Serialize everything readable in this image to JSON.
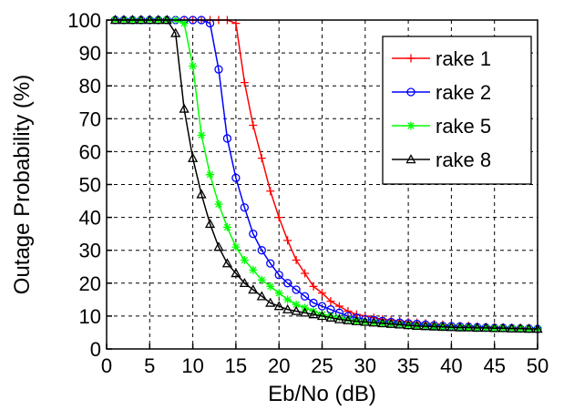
{
  "chart_data": {
    "type": "line",
    "xlabel": "Eb/No (dB)",
    "ylabel": "Outage Probability (%)",
    "xlim": [
      0,
      50
    ],
    "ylim": [
      0,
      100
    ],
    "xticks": [
      0,
      5,
      10,
      15,
      20,
      25,
      30,
      35,
      40,
      45,
      50
    ],
    "yticks": [
      0,
      10,
      20,
      30,
      40,
      50,
      60,
      70,
      80,
      90,
      100
    ],
    "grid": true,
    "legend_position": "top-right",
    "series": [
      {
        "name": "rake 1",
        "color": "#ff0000",
        "marker": "plus",
        "x": [
          1,
          2,
          3,
          4,
          5,
          6,
          7,
          8,
          9,
          10,
          11,
          12,
          13,
          14,
          15,
          16,
          17,
          18,
          19,
          20,
          21,
          22,
          23,
          24,
          25,
          26,
          27,
          28,
          29,
          30,
          31,
          32,
          33,
          34,
          35,
          36,
          37,
          38,
          39,
          40,
          41,
          42,
          43,
          44,
          45,
          46,
          47,
          48,
          49,
          50
        ],
        "y": [
          100,
          100,
          100,
          100,
          100,
          100,
          100,
          100,
          100,
          100,
          100,
          100,
          100,
          100,
          99,
          81,
          68,
          58,
          48,
          40,
          33,
          27,
          23,
          19,
          17,
          14.5,
          13,
          11.5,
          10.5,
          10,
          9.5,
          9,
          8.8,
          8.5,
          8.2,
          8,
          7.8,
          7.6,
          7.4,
          7.2,
          7,
          7,
          6.8,
          6.7,
          6.6,
          6.5,
          6.4,
          6.3,
          6.2,
          6.1
        ]
      },
      {
        "name": "rake 2",
        "color": "#0000ff",
        "marker": "circle",
        "x": [
          1,
          2,
          3,
          4,
          5,
          6,
          7,
          8,
          9,
          10,
          11,
          12,
          13,
          14,
          15,
          16,
          17,
          18,
          19,
          20,
          21,
          22,
          23,
          24,
          25,
          26,
          27,
          28,
          29,
          30,
          31,
          32,
          33,
          34,
          35,
          36,
          37,
          38,
          39,
          40,
          41,
          42,
          43,
          44,
          45,
          46,
          47,
          48,
          49,
          50
        ],
        "y": [
          100,
          100,
          100,
          100,
          100,
          100,
          100,
          100,
          100,
          100,
          100,
          99,
          85,
          64,
          52,
          43,
          35,
          30,
          26,
          22.5,
          20,
          18,
          16,
          14,
          13,
          12,
          11,
          10,
          9.5,
          9,
          8.8,
          8.5,
          8.2,
          8,
          7.8,
          7.6,
          7.4,
          7.2,
          7,
          6.9,
          6.8,
          6.7,
          6.6,
          6.5,
          6.4,
          6.4,
          6.3,
          6.2,
          6.2,
          6.1
        ]
      },
      {
        "name": "rake 5",
        "color": "#00ff00",
        "marker": "star",
        "x": [
          1,
          2,
          3,
          4,
          5,
          6,
          7,
          8,
          9,
          10,
          11,
          12,
          13,
          14,
          15,
          16,
          17,
          18,
          19,
          20,
          21,
          22,
          23,
          24,
          25,
          26,
          27,
          28,
          29,
          30,
          31,
          32,
          33,
          34,
          35,
          36,
          37,
          38,
          39,
          40,
          41,
          42,
          43,
          44,
          45,
          46,
          47,
          48,
          49,
          50
        ],
        "y": [
          100,
          100,
          100,
          100,
          100,
          100,
          100,
          100,
          99,
          86,
          65,
          53,
          44,
          37,
          31,
          27,
          24,
          21,
          19,
          17,
          15,
          13.5,
          12.5,
          11.5,
          10.5,
          10,
          9.5,
          9,
          8.5,
          8.2,
          8,
          7.8,
          7.6,
          7.4,
          7.2,
          7,
          6.9,
          6.8,
          6.7,
          6.6,
          6.5,
          6.5,
          6.4,
          6.4,
          6.3,
          6.3,
          6.2,
          6.2,
          6.1,
          6.1
        ]
      },
      {
        "name": "rake 8",
        "color": "#000000",
        "marker": "triangle",
        "x": [
          1,
          2,
          3,
          4,
          5,
          6,
          7,
          8,
          9,
          10,
          11,
          12,
          13,
          14,
          15,
          16,
          17,
          18,
          19,
          20,
          21,
          22,
          23,
          24,
          25,
          26,
          27,
          28,
          29,
          30,
          31,
          32,
          33,
          34,
          35,
          36,
          37,
          38,
          39,
          40,
          41,
          42,
          43,
          44,
          45,
          46,
          47,
          48,
          49,
          50
        ],
        "y": [
          100,
          100,
          100,
          100,
          100,
          100,
          100,
          96,
          73,
          58,
          47,
          38,
          31,
          26,
          23,
          20,
          18,
          16,
          14,
          13,
          12,
          11.5,
          11,
          10.5,
          10,
          9.5,
          9,
          8.7,
          8.4,
          8.2,
          8,
          7.8,
          7.6,
          7.4,
          7.2,
          7,
          6.9,
          6.8,
          6.7,
          6.6,
          6.5,
          6.5,
          6.4,
          6.4,
          6.3,
          6.3,
          6.2,
          6.2,
          6.1,
          6.1
        ]
      }
    ]
  }
}
